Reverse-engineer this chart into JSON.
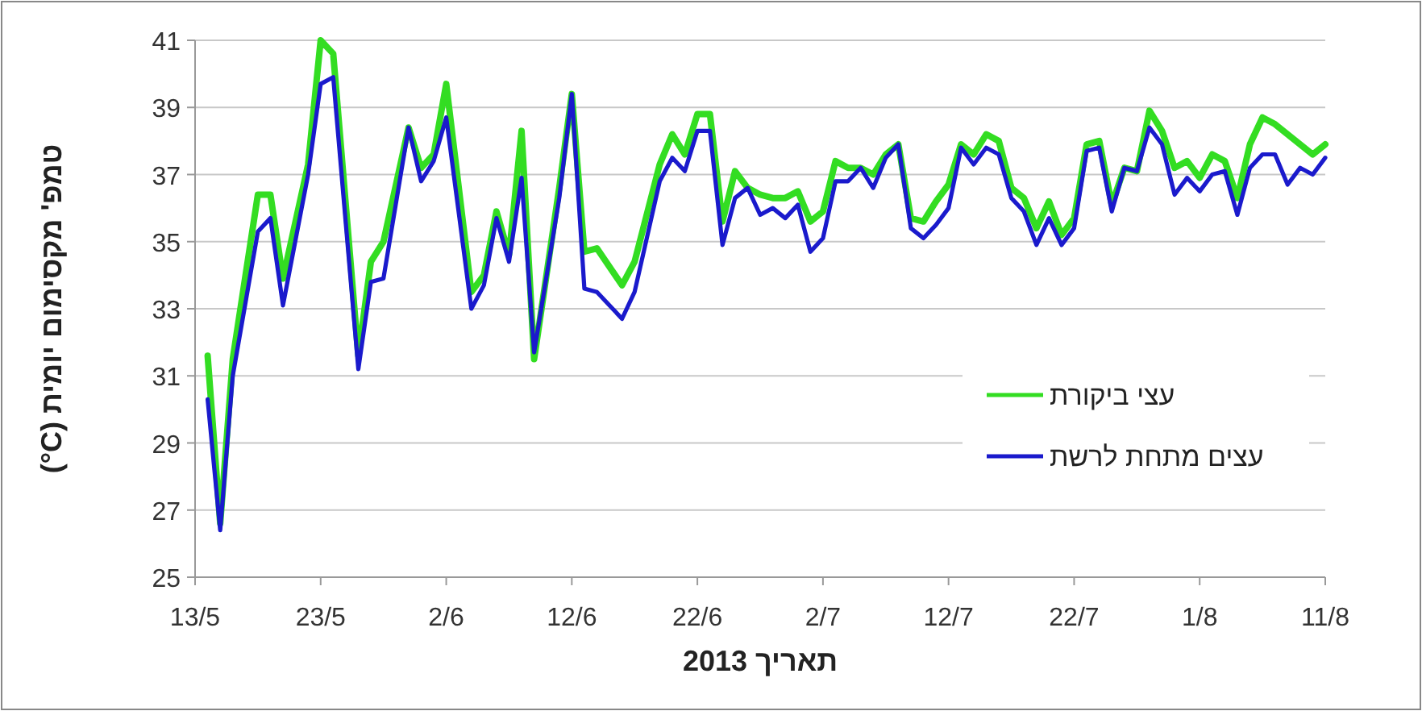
{
  "chart_data": {
    "type": "line",
    "xlabel": "תאריך 2013",
    "ylabel": "טמפ' מקסימום יומית (C°)",
    "x": [
      "2013-05-14",
      "2013-05-15",
      "2013-05-16",
      "2013-05-18",
      "2013-05-19",
      "2013-05-20",
      "2013-05-22",
      "2013-05-23",
      "2013-05-24",
      "2013-05-26",
      "2013-05-27",
      "2013-05-28",
      "2013-05-30",
      "2013-05-31",
      "2013-06-01",
      "2013-06-02",
      "2013-06-04",
      "2013-06-05",
      "2013-06-06",
      "2013-06-07",
      "2013-06-08",
      "2013-06-09",
      "2013-06-11",
      "2013-06-12",
      "2013-06-13",
      "2013-06-14",
      "2013-06-16",
      "2013-06-17",
      "2013-06-19",
      "2013-06-20",
      "2013-06-21",
      "2013-06-22",
      "2013-06-23",
      "2013-06-24",
      "2013-06-25",
      "2013-06-26",
      "2013-06-27",
      "2013-06-28",
      "2013-06-29",
      "2013-06-30",
      "2013-07-01",
      "2013-07-02",
      "2013-07-03",
      "2013-07-04",
      "2013-07-05",
      "2013-07-06",
      "2013-07-07",
      "2013-07-08",
      "2013-07-09",
      "2013-07-10",
      "2013-07-11",
      "2013-07-12",
      "2013-07-13",
      "2013-07-14",
      "2013-07-15",
      "2013-07-16",
      "2013-07-17",
      "2013-07-18",
      "2013-07-19",
      "2013-07-20",
      "2013-07-21",
      "2013-07-22",
      "2013-07-23",
      "2013-07-24",
      "2013-07-25",
      "2013-07-26",
      "2013-07-27",
      "2013-07-28",
      "2013-07-29",
      "2013-07-30",
      "2013-07-31",
      "2013-08-01",
      "2013-08-02",
      "2013-08-03",
      "2013-08-04",
      "2013-08-05",
      "2013-08-06",
      "2013-08-07",
      "2013-08-08",
      "2013-08-09",
      "2013-08-10",
      "2013-08-11"
    ],
    "series": [
      {
        "name": "עצי ביקורת",
        "color": "#33dd22",
        "values": [
          31.6,
          26.6,
          31.5,
          36.4,
          36.4,
          33.9,
          37.3,
          41.0,
          40.6,
          31.6,
          34.4,
          35.0,
          38.4,
          37.2,
          37.6,
          39.7,
          33.5,
          34.0,
          35.9,
          34.6,
          38.3,
          31.5,
          36.6,
          39.4,
          34.7,
          34.8,
          33.7,
          34.4,
          37.3,
          38.2,
          37.6,
          38.8,
          38.8,
          35.6,
          37.1,
          36.6,
          36.4,
          36.3,
          36.3,
          36.5,
          35.6,
          35.9,
          37.4,
          37.2,
          37.2,
          37.0,
          37.6,
          37.9,
          35.7,
          35.6,
          36.2,
          36.7,
          37.9,
          37.6,
          38.2,
          38.0,
          36.6,
          36.3,
          35.4,
          36.2,
          35.2,
          35.7,
          37.9,
          38.0,
          36.1,
          37.2,
          37.1,
          38.9,
          38.3,
          37.2,
          37.4,
          36.9,
          37.6,
          37.4,
          36.3,
          37.9,
          38.7,
          38.5,
          38.2,
          37.9,
          37.6,
          37.9
        ]
      },
      {
        "name": "עצים מתחת לרשת",
        "color": "#1a1acc",
        "values": [
          30.3,
          26.4,
          31.0,
          35.3,
          35.7,
          33.1,
          37.0,
          39.7,
          39.9,
          31.2,
          33.8,
          33.9,
          38.4,
          36.8,
          37.4,
          38.7,
          33.0,
          33.7,
          35.7,
          34.4,
          36.9,
          31.7,
          36.3,
          39.4,
          33.6,
          33.5,
          32.7,
          33.5,
          36.8,
          37.5,
          37.1,
          38.3,
          38.3,
          34.9,
          36.3,
          36.6,
          35.8,
          36.0,
          35.7,
          36.1,
          34.7,
          35.1,
          36.8,
          36.8,
          37.2,
          36.6,
          37.5,
          37.9,
          35.4,
          35.1,
          35.5,
          36.0,
          37.8,
          37.3,
          37.8,
          37.6,
          36.3,
          35.9,
          34.9,
          35.7,
          34.9,
          35.4,
          37.7,
          37.8,
          35.9,
          37.2,
          37.1,
          38.4,
          37.9,
          36.4,
          36.9,
          36.5,
          37.0,
          37.1,
          35.8,
          37.2,
          37.6,
          37.6,
          36.7,
          37.2,
          37.0,
          37.5
        ]
      }
    ],
    "xlim": [
      "2013-05-13",
      "2013-08-11"
    ],
    "xticks": [
      {
        "value": "2013-05-13",
        "label": "13/5"
      },
      {
        "value": "2013-05-23",
        "label": "23/5"
      },
      {
        "value": "2013-06-02",
        "label": "2/6"
      },
      {
        "value": "2013-06-12",
        "label": "12/6"
      },
      {
        "value": "2013-06-22",
        "label": "22/6"
      },
      {
        "value": "2013-07-02",
        "label": "2/7"
      },
      {
        "value": "2013-07-12",
        "label": "12/7"
      },
      {
        "value": "2013-07-22",
        "label": "22/7"
      },
      {
        "value": "2013-08-01",
        "label": "1/8"
      },
      {
        "value": "2013-08-11",
        "label": "11/8"
      }
    ],
    "ylim": [
      25,
      41
    ],
    "yticks": [
      25,
      27,
      29,
      31,
      33,
      35,
      37,
      39,
      41
    ],
    "grid": "y",
    "legend": "bottom right",
    "marker": "none",
    "line_style": "solid"
  }
}
